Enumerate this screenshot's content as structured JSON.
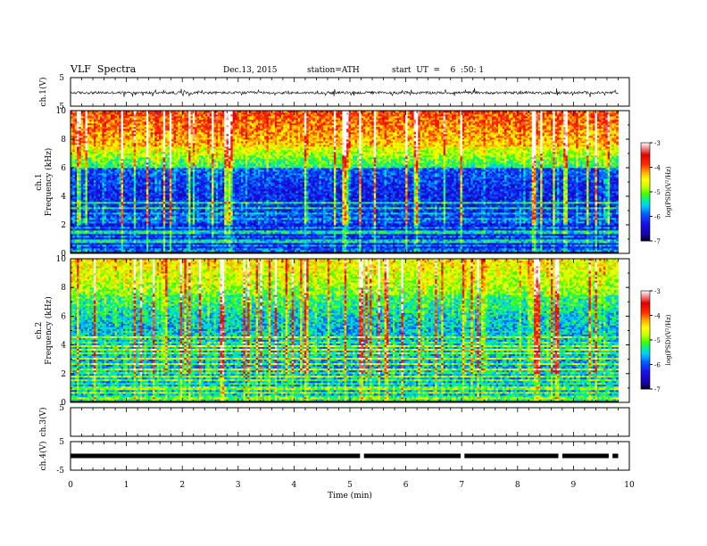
{
  "header": {
    "title": "VLF  Spectra",
    "date": "Dec.13, 2015",
    "station": "station=ATH",
    "start": "start  UT  =    6  :50: 1"
  },
  "chart_data": [
    {
      "type": "line",
      "panel": "ch1-waveform",
      "ylabel": "ch.1(V)",
      "ylim": [
        -5,
        5
      ],
      "yticks": [
        "5",
        "-5"
      ],
      "xlim": [
        0,
        10
      ],
      "note": "noisy waveform, mean about -0.3 V, spikes to about +1 and -1 V"
    },
    {
      "type": "heatmap",
      "panel": "ch1-spectrogram",
      "ylabel": "ch.1\nFrequency (kHz)",
      "ylim": [
        0,
        10
      ],
      "yticks": [
        "0",
        "2",
        "4",
        "6",
        "8",
        "10"
      ],
      "xlim": [
        0,
        10
      ],
      "data_end_min": 9.8,
      "colorbar": {
        "label": "log(PSD)(V²/Hz)",
        "range": [
          -7,
          -3
        ],
        "ticks": [
          "-3",
          "-4",
          "-5",
          "-6",
          "-7"
        ]
      }
    },
    {
      "type": "heatmap",
      "panel": "ch2-spectrogram",
      "ylabel": "ch.2\nFrequency (kHz)",
      "ylim": [
        0,
        10
      ],
      "yticks": [
        "0",
        "2",
        "4",
        "6",
        "8",
        "10"
      ],
      "xlim": [
        0,
        10
      ],
      "data_end_min": 9.8,
      "colorbar": {
        "label": "log(PSD)(V²/Hz)",
        "range": [
          -7,
          -3
        ],
        "ticks": [
          "-3",
          "-4",
          "-5",
          "-6",
          "-7"
        ]
      }
    },
    {
      "type": "line",
      "panel": "ch3-waveform",
      "ylabel": "ch.3(V)",
      "ylim": [
        -5,
        5
      ],
      "yticks": [
        "5"
      ],
      "xlim": [
        0,
        10
      ],
      "note": "flat, no signal"
    },
    {
      "type": "line",
      "panel": "ch4-waveform",
      "ylabel": "ch.4(V)",
      "ylim": [
        -5,
        5
      ],
      "yticks": [
        "5",
        "-5"
      ],
      "xlim": [
        0,
        10
      ],
      "level_v": 0,
      "gaps_min": [
        5.2,
        7.0,
        8.75,
        9.65
      ],
      "note": "thick flat trace near 0 V with short gaps"
    }
  ],
  "xaxis": {
    "label": "Time (min)",
    "ticks": [
      "0",
      "1",
      "2",
      "3",
      "4",
      "5",
      "6",
      "7",
      "8",
      "9",
      "10"
    ]
  },
  "colors": {
    "psd_scale": [
      "#000000",
      "#1b00c8",
      "#0050ff",
      "#00c8ff",
      "#00f0a0",
      "#3cff00",
      "#c8ff00",
      "#ffff00",
      "#ffaa00",
      "#ff4000",
      "#e00000",
      "#ffffff"
    ]
  }
}
